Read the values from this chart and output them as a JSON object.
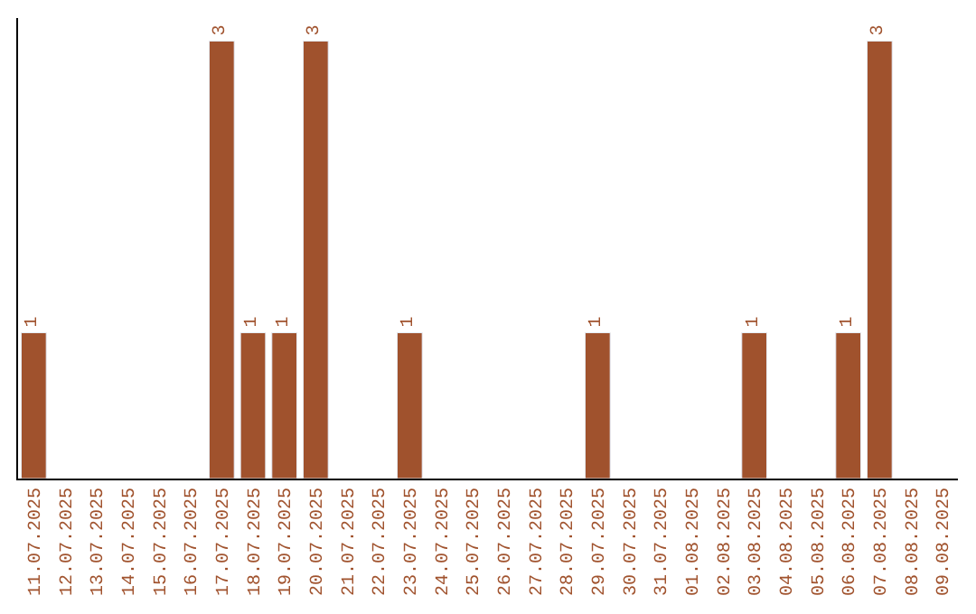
{
  "chart_data": {
    "type": "bar",
    "categories": [
      "11.07.2025",
      "12.07.2025",
      "13.07.2025",
      "14.07.2025",
      "15.07.2025",
      "16.07.2025",
      "17.07.2025",
      "18.07.2025",
      "19.07.2025",
      "20.07.2025",
      "21.07.2025",
      "22.07.2025",
      "23.07.2025",
      "24.07.2025",
      "25.07.2025",
      "26.07.2025",
      "27.07.2025",
      "28.07.2025",
      "29.07.2025",
      "30.07.2025",
      "31.07.2025",
      "01.08.2025",
      "02.08.2025",
      "03.08.2025",
      "04.08.2025",
      "05.08.2025",
      "06.08.2025",
      "07.08.2025",
      "08.08.2025",
      "09.08.2025"
    ],
    "values": [
      1,
      null,
      null,
      null,
      null,
      null,
      3,
      1,
      1,
      3,
      null,
      null,
      1,
      null,
      null,
      null,
      null,
      null,
      1,
      null,
      null,
      null,
      null,
      1,
      null,
      null,
      1,
      3,
      null,
      null
    ],
    "value_labels": [
      "1",
      null,
      null,
      null,
      null,
      null,
      "3",
      "1",
      "1",
      "3",
      null,
      null,
      "1",
      null,
      null,
      null,
      null,
      null,
      "1",
      null,
      null,
      null,
      null,
      "1",
      null,
      null,
      "1",
      "3",
      null,
      null
    ],
    "color": "#a0522d",
    "legend": false,
    "tick_labels": "x"
  }
}
